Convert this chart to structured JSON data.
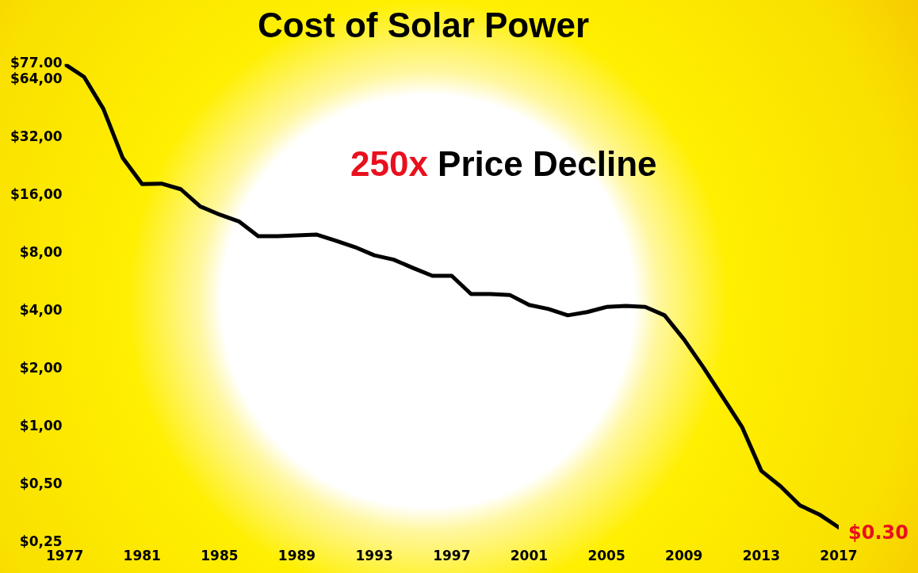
{
  "chart_data": {
    "type": "line",
    "title": "Cost of Solar Power",
    "x": [
      1977,
      1978,
      1979,
      1980,
      1981,
      1982,
      1983,
      1984,
      1985,
      1986,
      1987,
      1988,
      1989,
      1990,
      1991,
      1992,
      1993,
      1994,
      1995,
      1996,
      1997,
      1998,
      1999,
      2000,
      2001,
      2002,
      2003,
      2004,
      2005,
      2006,
      2007,
      2008,
      2009,
      2010,
      2011,
      2012,
      2013,
      2014,
      2015,
      2016,
      2017
    ],
    "series": [
      {
        "color": "#000000",
        "values": [
          77,
          66,
          45,
          25,
          18.3,
          18.4,
          17.2,
          14,
          12.7,
          11.7,
          9.8,
          9.8,
          9.9,
          10,
          9.3,
          8.6,
          7.8,
          7.4,
          6.7,
          6.1,
          6.1,
          4.9,
          4.9,
          4.85,
          4.3,
          4.1,
          3.8,
          3.95,
          4.2,
          4.25,
          4.2,
          3.8,
          2.85,
          2.04,
          1.43,
          1,
          0.59,
          0.49,
          0.39,
          0.35,
          0.3
        ]
      }
    ],
    "log": "y",
    "xlim": [
      1977,
      2017
    ],
    "ylim": [
      0.25,
      77
    ],
    "xticks": [
      1977,
      1981,
      1985,
      1989,
      1993,
      1997,
      2001,
      2005,
      2009,
      2013,
      2017
    ],
    "yticks": [
      {
        "value": 0.25,
        "label": "$0,25"
      },
      {
        "value": 0.5,
        "label": "$0,50"
      },
      {
        "value": 1,
        "label": "$1,00"
      },
      {
        "value": 2,
        "label": "$2,00"
      },
      {
        "value": 4,
        "label": "$4,00"
      },
      {
        "value": 8,
        "label": "$8,00"
      },
      {
        "value": 16,
        "label": "$16,00"
      },
      {
        "value": 32,
        "label": "$32,00"
      },
      {
        "value": 64,
        "label": "$64,00"
      },
      {
        "value": 77,
        "label": "$77.00"
      }
    ],
    "grid": false,
    "legend": false,
    "marker": "none",
    "line_style": "solid",
    "annotations": [
      {
        "text": "$0.30",
        "x": 2017,
        "y": 0.3
      },
      "250x Price Decline"
    ]
  }
}
